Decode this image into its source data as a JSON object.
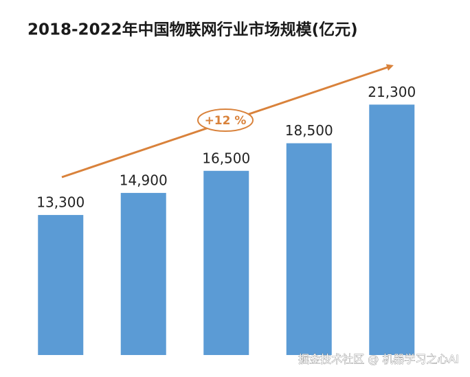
{
  "chart_data": {
    "type": "bar",
    "title": "2018-2022年中国物联网行业市场规模(亿元)",
    "values": [
      13300,
      14900,
      16500,
      18500,
      21300
    ],
    "value_labels": [
      "13,300",
      "14,900",
      "16,500",
      "18,500",
      "21,300"
    ],
    "color": "#5b9bd5",
    "ylim": [
      3150,
      24900
    ],
    "annotation": "+12 %",
    "watermark": "掘金技术社区 @ 机器学习之心AI"
  }
}
